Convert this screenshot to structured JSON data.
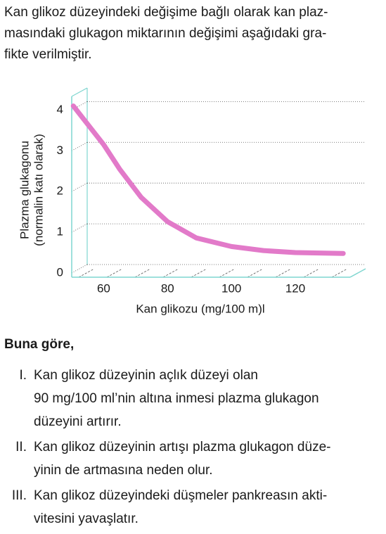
{
  "intro": {
    "lines": [
      "Kan glikoz düzeyindeki değişime bağlı olarak kan plaz-",
      "masındaki glukagon miktarının değişimi aşağıdaki gra-",
      "fikte verilmiştir."
    ]
  },
  "chart_data": {
    "type": "line",
    "x_label": "Kan glikozu (mg/100 m)l",
    "y_label": [
      "Plazma glukagonu",
      "(normalin katı olarak)"
    ],
    "x": [
      50.5,
      60,
      65,
      71.7,
      80,
      89,
      100,
      110,
      120,
      135
    ],
    "series": [
      {
        "color": "#e27ac9",
        "values": [
          4.1,
          3.15,
          2.55,
          1.86,
          1.26,
          0.86,
          0.65,
          0.55,
          0.5,
          0.48
        ]
      }
    ],
    "xlim": [
      50,
      142
    ],
    "xticks": [
      60,
      80,
      100,
      120
    ],
    "ylim": [
      0,
      4.3
    ],
    "yticks": [
      0,
      1,
      2,
      3,
      4
    ],
    "grid": true
  },
  "question": {
    "lead": "Buna göre,",
    "items": [
      {
        "numeral": "I.",
        "lines": [
          "Kan glikoz düzeyinin açlık düzeyi olan",
          "90 mg/100 ml’nin altına inmesi plazma glukagon",
          "düzeyini artırır."
        ]
      },
      {
        "numeral": "II.",
        "lines": [
          "Kan glikoz düzeyinin artışı plazma glukagon düze-",
          "yinin de artmasına neden olur."
        ]
      },
      {
        "numeral": "III.",
        "lines": [
          "Kan glikoz düzeyindeki düşmeler pankreasın akti-",
          "vitesini yavaşlatır."
        ]
      }
    ]
  }
}
